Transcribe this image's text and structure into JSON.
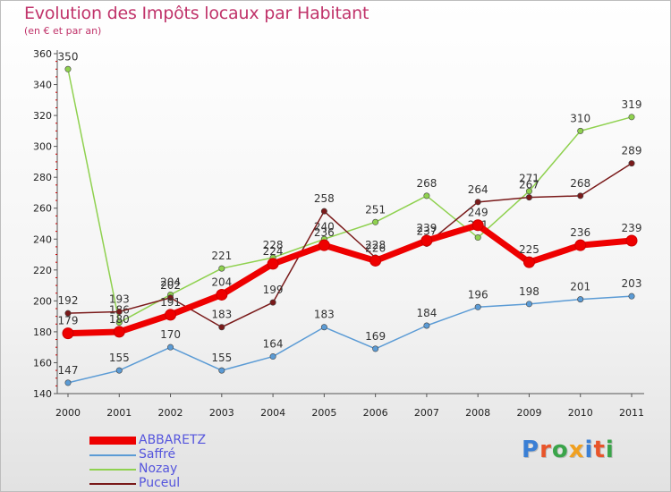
{
  "title": "Evolution des Impôts locaux par Habitant",
  "subtitle": "(en € et par an)",
  "logo": "Proxiti",
  "chart_data": {
    "type": "line",
    "x": [
      "2000",
      "2001",
      "2002",
      "2003",
      "2004",
      "2005",
      "2006",
      "2007",
      "2008",
      "2009",
      "2010",
      "2011"
    ],
    "ylim": [
      140,
      360
    ],
    "yticks": [
      140,
      160,
      180,
      200,
      220,
      240,
      260,
      280,
      300,
      320,
      340,
      360
    ],
    "grid": false,
    "legend_placement": "bottom-left",
    "series": [
      {
        "name": "Saffré",
        "color": "#5b9bd5",
        "values": [
          147,
          155,
          170,
          155,
          164,
          183,
          169,
          184,
          196,
          198,
          201,
          203
        ]
      },
      {
        "name": "Nozay",
        "color": "#8fd14f",
        "values": [
          350,
          186,
          204,
          221,
          228,
          240,
          251,
          268,
          241,
          271,
          310,
          319
        ]
      },
      {
        "name": "Puceul",
        "color": "#7a1a1a",
        "values": [
          192,
          193,
          202,
          183,
          199,
          258,
          228,
          237,
          264,
          267,
          268,
          289
        ]
      },
      {
        "name": "ABBARETZ",
        "color": "#ee0000",
        "values": [
          179,
          180,
          191,
          204,
          224,
          236,
          226,
          239,
          249,
          225,
          236,
          239
        ]
      }
    ],
    "legend_order": [
      "ABBARETZ",
      "Saffré",
      "Nozay",
      "Puceul"
    ]
  }
}
